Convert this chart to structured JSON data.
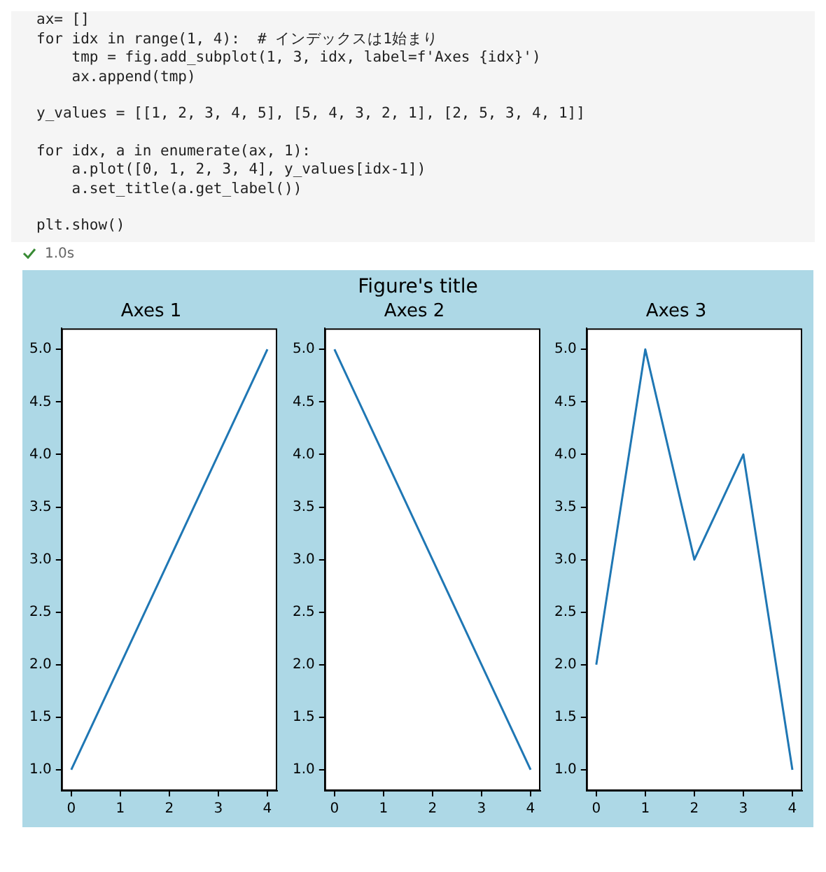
{
  "chart_data": [
    {
      "type": "other",
      "annotations": [
        "ax= []\nfor idx in range(1, 4):  # インデックスは1始まり\n    tmp = fig.add_subplot(1, 3, idx, label=f'Axes {idx}')\n    ax.append(tmp)",
        "y_values = [[1, 2, 3, 4, 5], [5, 4, 3, 2, 1], [2, 5, 3, 4, 1]]",
        "for idx, a in enumerate(ax, 1):\n    a.plot([0, 1, 2, 3, 4], y_values[idx-1])\n    a.set_title(a.get_label())",
        "plt.show()",
        "1.0s"
      ]
    },
    {
      "type": "other",
      "title": "Figure's title"
    },
    {
      "type": "line",
      "title": "Axes 1",
      "x": [
        0,
        1,
        2,
        3,
        4
      ],
      "values": [
        1,
        2,
        3,
        4,
        5
      ],
      "color": "#1f77b4",
      "xlim": [
        -0.2,
        4.2
      ],
      "ylim": [
        0.8,
        5.2
      ],
      "xticks": [
        0,
        1,
        2,
        3,
        4
      ],
      "yticks": [
        {
          "value": 1,
          "label": "1.0"
        },
        {
          "value": 1.5,
          "label": "1.5"
        },
        {
          "value": 2,
          "label": "2.0"
        },
        {
          "value": 2.5,
          "label": "2.5"
        },
        {
          "value": 3,
          "label": "3.0"
        },
        {
          "value": 3.5,
          "label": "3.5"
        },
        {
          "value": 4,
          "label": "4.0"
        },
        {
          "value": 4.5,
          "label": "4.5"
        },
        {
          "value": 5,
          "label": "5.0"
        }
      ]
    },
    {
      "type": "line",
      "title": "Axes 2",
      "x": [
        0,
        1,
        2,
        3,
        4
      ],
      "values": [
        5,
        4,
        3,
        2,
        1
      ],
      "color": "#1f77b4",
      "xlim": [
        -0.2,
        4.2
      ],
      "ylim": [
        0.8,
        5.2
      ],
      "xticks": [
        0,
        1,
        2,
        3,
        4
      ],
      "yticks": [
        {
          "value": 1,
          "label": "1.0"
        },
        {
          "value": 1.5,
          "label": "1.5"
        },
        {
          "value": 2,
          "label": "2.0"
        },
        {
          "value": 2.5,
          "label": "2.5"
        },
        {
          "value": 3,
          "label": "3.0"
        },
        {
          "value": 3.5,
          "label": "3.5"
        },
        {
          "value": 4,
          "label": "4.0"
        },
        {
          "value": 4.5,
          "label": "4.5"
        },
        {
          "value": 5,
          "label": "5.0"
        }
      ]
    },
    {
      "type": "line",
      "title": "Axes 3",
      "x": [
        0,
        1,
        2,
        3,
        4
      ],
      "values": [
        2,
        5,
        3,
        4,
        1
      ],
      "color": "#1f77b4",
      "xlim": [
        -0.2,
        4.2
      ],
      "ylim": [
        0.8,
        5.2
      ],
      "xticks": [
        0,
        1,
        2,
        3,
        4
      ],
      "yticks": [
        {
          "value": 1,
          "label": "1.0"
        },
        {
          "value": 1.5,
          "label": "1.5"
        },
        {
          "value": 2,
          "label": "2.0"
        },
        {
          "value": 2.5,
          "label": "2.5"
        },
        {
          "value": 3,
          "label": "3.0"
        },
        {
          "value": 3.5,
          "label": "3.5"
        },
        {
          "value": 4,
          "label": "4.0"
        },
        {
          "value": 4.5,
          "label": "4.5"
        },
        {
          "value": 5,
          "label": "5.0"
        }
      ]
    }
  ]
}
